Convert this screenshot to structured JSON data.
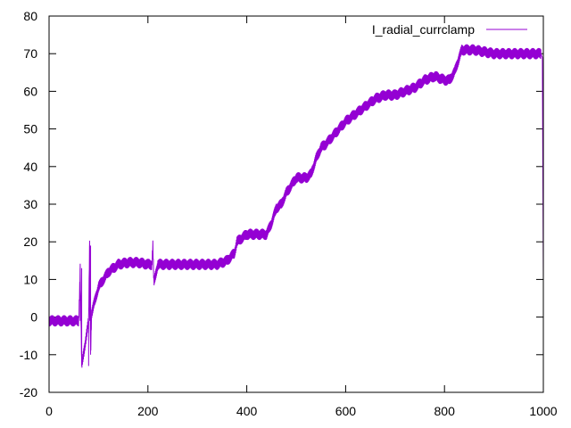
{
  "chart_data": {
    "type": "line",
    "title": "",
    "xlabel": "",
    "ylabel": "",
    "xlim": [
      0,
      1000
    ],
    "ylim": [
      -20,
      80
    ],
    "x_ticks": [
      0,
      200,
      400,
      600,
      800,
      1000
    ],
    "y_ticks": [
      -20,
      -10,
      0,
      10,
      20,
      30,
      40,
      50,
      60,
      70,
      80
    ],
    "grid": false,
    "legend": {
      "position": "top-right"
    },
    "series": [
      {
        "name": "I_radial_currclamp",
        "color": "#9400d3",
        "noise_amplitude": 1.5,
        "x": [
          0,
          60,
          63,
          66,
          80,
          82,
          84,
          86,
          90,
          100,
          120,
          140,
          160,
          180,
          200,
          208,
          210,
          212,
          220,
          260,
          300,
          340,
          360,
          375,
          380,
          400,
          420,
          440,
          450,
          460,
          470,
          480,
          500,
          520,
          530,
          540,
          550,
          560,
          580,
          600,
          620,
          640,
          660,
          680,
          700,
          720,
          740,
          760,
          780,
          800,
          810,
          820,
          830,
          835,
          840,
          860,
          900,
          940,
          980,
          995,
          998,
          1000
        ],
        "y": [
          -1,
          -1,
          13,
          -13,
          -1,
          19,
          -10,
          1,
          3,
          8,
          12,
          14,
          14.5,
          14.5,
          14,
          14,
          19,
          9,
          14,
          14,
          14,
          14,
          15,
          17,
          20,
          22,
          22,
          22,
          25,
          29,
          30,
          33,
          37,
          37,
          38,
          42,
          45,
          46,
          49,
          52,
          54,
          56,
          58,
          59,
          59,
          60,
          61,
          63,
          64,
          63,
          63,
          65,
          69,
          71,
          71,
          71,
          70,
          70,
          70,
          70,
          69,
          10
        ]
      }
    ]
  }
}
